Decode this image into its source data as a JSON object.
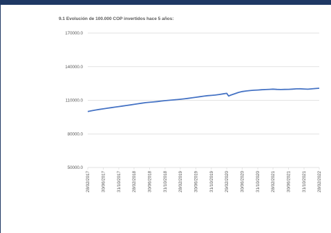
{
  "chart_data": {
    "type": "line",
    "title": "9.1 Evolución de 100.000 COP invertidos hace 5 años:",
    "xlabel": "",
    "ylabel": "",
    "ylim": [
      50000,
      170000
    ],
    "yticks": [
      "170000.0",
      "140000.0",
      "110000.0",
      "80000.0",
      "50000.0"
    ],
    "ytick_values": [
      170000,
      140000,
      110000,
      80000,
      50000
    ],
    "xticks": [
      "28/02/2017",
      "30/06/2017",
      "31/10/2017",
      "28/02/2018",
      "30/06/2018",
      "31/10/2018",
      "28/02/2019",
      "30/06/2019",
      "31/10/2019",
      "29/02/2020",
      "30/06/2020",
      "31/10/2020",
      "28/02/2021",
      "30/06/2021",
      "31/10/2021",
      "28/02/2022"
    ],
    "grid": true,
    "legend": "none",
    "line_color": "#4472c4",
    "series": [
      {
        "x": [
          "28/02/2017",
          "31/03/2017",
          "30/04/2017",
          "31/05/2017",
          "30/06/2017",
          "31/07/2017",
          "31/08/2017",
          "30/09/2017",
          "31/10/2017",
          "30/11/2017",
          "31/12/2017",
          "31/01/2018",
          "28/02/2018",
          "31/03/2018",
          "30/04/2018",
          "31/05/2018",
          "30/06/2018",
          "31/07/2018",
          "31/08/2018",
          "30/09/2018",
          "31/10/2018",
          "30/11/2018",
          "31/12/2018",
          "31/01/2019",
          "28/02/2019",
          "31/03/2019",
          "30/04/2019",
          "31/05/2019",
          "30/06/2019",
          "31/07/2019",
          "31/08/2019",
          "30/09/2019",
          "31/10/2019",
          "30/11/2019",
          "31/12/2019",
          "31/01/2020",
          "29/02/2020",
          "15/03/2020",
          "31/03/2020",
          "30/04/2020",
          "31/05/2020",
          "30/06/2020",
          "31/07/2020",
          "31/08/2020",
          "30/09/2020",
          "31/10/2020",
          "30/11/2020",
          "31/12/2020",
          "31/01/2021",
          "28/02/2021",
          "31/03/2021",
          "30/04/2021",
          "31/05/2021",
          "30/06/2021",
          "31/07/2021",
          "31/08/2021",
          "30/09/2021",
          "31/10/2021",
          "30/11/2021",
          "31/12/2021",
          "31/01/2022",
          "28/02/2022"
        ],
        "values": [
          100000,
          100700,
          101300,
          101900,
          102400,
          102900,
          103400,
          103900,
          104400,
          104900,
          105400,
          105900,
          106400,
          106900,
          107400,
          107900,
          108200,
          108500,
          108900,
          109300,
          109700,
          110000,
          110300,
          110600,
          110900,
          111300,
          111700,
          112200,
          112700,
          113200,
          113700,
          114100,
          114400,
          114700,
          115200,
          115700,
          116200,
          113800,
          114600,
          115800,
          117000,
          117800,
          118300,
          118700,
          119000,
          119200,
          119400,
          119600,
          119800,
          120000,
          119700,
          119600,
          119700,
          119800,
          120000,
          120200,
          120300,
          120100,
          119900,
          120200,
          120500,
          120800
        ]
      }
    ]
  }
}
